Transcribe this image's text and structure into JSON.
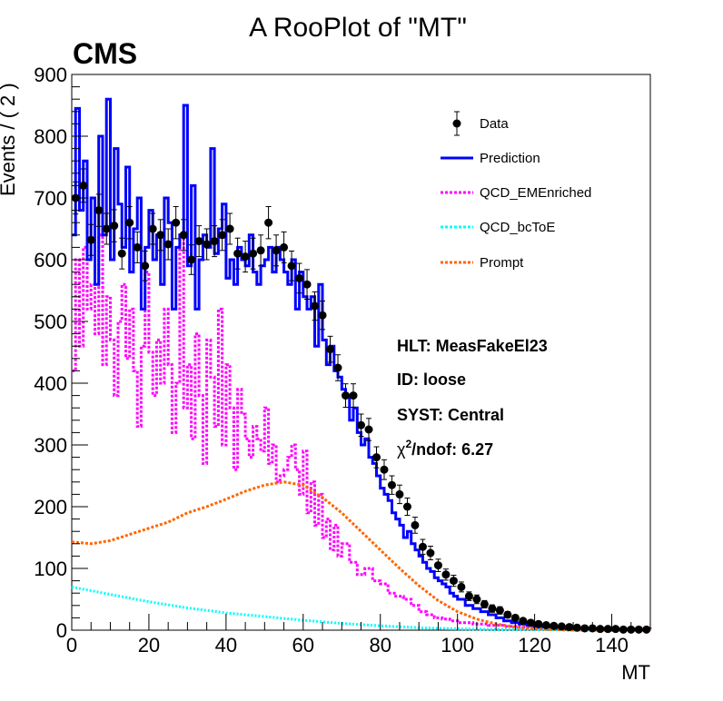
{
  "chart_data": {
    "type": "line",
    "title": "A RooPlot of \"MT\"",
    "brand": "CMS",
    "xlabel": "MT",
    "ylabel": "Events / ( 2 )",
    "xlim": [
      0,
      150
    ],
    "ylim": [
      0,
      900
    ],
    "x_ticks": [
      0,
      20,
      40,
      60,
      80,
      100,
      120,
      140
    ],
    "y_ticks": [
      0,
      100,
      200,
      300,
      400,
      500,
      600,
      700,
      800,
      900
    ],
    "grid": false,
    "legend_position": "top-right",
    "legend": [
      {
        "key": "data",
        "label": "Data",
        "style": "marker"
      },
      {
        "key": "prediction",
        "label": "Prediction",
        "style": "solid",
        "color": "#0000ff"
      },
      {
        "key": "qcd_em",
        "label": "QCD_EMEnriched",
        "style": "dotted",
        "color": "#ff00ff"
      },
      {
        "key": "qcd_bc",
        "label": "QCD_bcToE",
        "style": "dotted",
        "color": "#00ffff"
      },
      {
        "key": "prompt",
        "label": "Prompt",
        "style": "dotted",
        "color": "#ff6600"
      }
    ],
    "annotations": [
      {
        "key": "hlt",
        "text": "HLT: MeasFakeEl23"
      },
      {
        "key": "id",
        "text": "ID: loose"
      },
      {
        "key": "syst",
        "text": "SYST: Central"
      },
      {
        "key": "chi",
        "prefix": "χ",
        "sup": "2",
        "suffix": "/ndof: 6.27"
      }
    ],
    "series": {
      "data": {
        "x": [
          1,
          3,
          5,
          7,
          9,
          11,
          13,
          15,
          17,
          19,
          21,
          23,
          25,
          27,
          29,
          31,
          33,
          35,
          37,
          39,
          41,
          43,
          45,
          47,
          49,
          51,
          53,
          55,
          57,
          59,
          61,
          63,
          65,
          67,
          69,
          71,
          73,
          75,
          77,
          79,
          81,
          83,
          85,
          87,
          89,
          91,
          93,
          95,
          97,
          99,
          101,
          103,
          105,
          107,
          109,
          111,
          113,
          115,
          117,
          119,
          121,
          123,
          125,
          127,
          129,
          131,
          133,
          135,
          137,
          139,
          141,
          143,
          145,
          147,
          149
        ],
        "y": [
          700,
          720,
          632,
          680,
          650,
          655,
          610,
          660,
          620,
          590,
          650,
          640,
          625,
          660,
          640,
          600,
          630,
          625,
          630,
          640,
          650,
          610,
          605,
          610,
          615,
          660,
          615,
          620,
          590,
          570,
          560,
          525,
          510,
          455,
          425,
          380,
          380,
          332,
          325,
          280,
          260,
          235,
          220,
          200,
          170,
          135,
          125,
          105,
          90,
          80,
          70,
          55,
          50,
          42,
          35,
          32,
          25,
          20,
          15,
          12,
          10,
          8,
          7,
          6,
          5,
          4,
          3,
          3,
          2,
          2,
          2,
          1,
          1,
          1,
          1
        ],
        "err": [
          26,
          27,
          25,
          26,
          25,
          26,
          25,
          26,
          25,
          24,
          25,
          25,
          25,
          26,
          25,
          24,
          25,
          25,
          25,
          25,
          25,
          25,
          25,
          25,
          25,
          26,
          25,
          25,
          24,
          24,
          24,
          23,
          23,
          21,
          21,
          19,
          19,
          18,
          18,
          17,
          16,
          15,
          15,
          14,
          13,
          12,
          11,
          10,
          9,
          9,
          8,
          7,
          7,
          6,
          6,
          6,
          5,
          4,
          4,
          3,
          3,
          3,
          3,
          2,
          2,
          2,
          2,
          2,
          1,
          1,
          1,
          1,
          1,
          1,
          1
        ]
      },
      "prediction": {
        "x": [
          0,
          1,
          2,
          3,
          4,
          5,
          6,
          7,
          8,
          9,
          10,
          11,
          12,
          13,
          14,
          15,
          16,
          17,
          18,
          19,
          20,
          21,
          22,
          23,
          24,
          25,
          26,
          27,
          28,
          29,
          30,
          31,
          32,
          33,
          34,
          35,
          36,
          37,
          38,
          39,
          40,
          41,
          42,
          43,
          44,
          45,
          46,
          47,
          48,
          49,
          50,
          51,
          52,
          53,
          54,
          55,
          56,
          57,
          58,
          59,
          60,
          61,
          62,
          63,
          64,
          65,
          66,
          67,
          68,
          69,
          70,
          71,
          72,
          73,
          74,
          75,
          76,
          77,
          78,
          79,
          80,
          81,
          82,
          83,
          84,
          85,
          86,
          87,
          88,
          89,
          90,
          91,
          92,
          93,
          94,
          95,
          96,
          97,
          98,
          99,
          100,
          102,
          104,
          106,
          108,
          110,
          112,
          114,
          116,
          118,
          120,
          125,
          130,
          135,
          140,
          145,
          150
        ],
        "y": [
          640,
          845,
          680,
          760,
          600,
          700,
          560,
          800,
          640,
          860,
          600,
          780,
          690,
          620,
          750,
          580,
          650,
          700,
          520,
          620,
          680,
          600,
          640,
          560,
          700,
          660,
          520,
          620,
          640,
          850,
          590,
          720,
          520,
          600,
          640,
          620,
          780,
          610,
          650,
          690,
          570,
          600,
          560,
          620,
          600,
          590,
          640,
          580,
          560,
          590,
          600,
          620,
          580,
          620,
          600,
          580,
          560,
          600,
          520,
          580,
          540,
          520,
          540,
          460,
          560,
          470,
          430,
          460,
          420,
          410,
          390,
          380,
          340,
          360,
          320,
          300,
          310,
          280,
          270,
          250,
          230,
          220,
          210,
          190,
          180,
          170,
          150,
          160,
          140,
          130,
          120,
          110,
          100,
          95,
          85,
          80,
          75,
          70,
          60,
          55,
          50,
          40,
          35,
          30,
          25,
          20,
          15,
          12,
          10,
          8,
          5,
          3,
          2,
          1,
          0,
          0,
          0
        ],
        "color": "#0000ff"
      },
      "qcd_em": {
        "x": [
          0,
          1,
          2,
          3,
          4,
          5,
          6,
          7,
          8,
          9,
          10,
          11,
          12,
          13,
          14,
          15,
          16,
          17,
          18,
          19,
          20,
          21,
          22,
          23,
          24,
          25,
          26,
          27,
          28,
          29,
          30,
          31,
          32,
          33,
          34,
          35,
          36,
          37,
          38,
          39,
          40,
          41,
          42,
          43,
          44,
          45,
          46,
          47,
          48,
          49,
          50,
          51,
          52,
          53,
          54,
          55,
          56,
          57,
          58,
          59,
          60,
          61,
          62,
          63,
          64,
          65,
          66,
          67,
          68,
          69,
          70,
          72,
          74,
          76,
          78,
          80,
          82,
          84,
          86,
          88,
          90,
          92,
          94,
          96,
          98,
          100,
          104,
          108,
          112,
          116,
          120,
          130,
          140,
          150
        ],
        "y": [
          420,
          600,
          460,
          620,
          520,
          560,
          480,
          640,
          430,
          540,
          470,
          380,
          500,
          560,
          440,
          520,
          420,
          330,
          460,
          580,
          450,
          380,
          470,
          400,
          520,
          430,
          320,
          400,
          640,
          360,
          430,
          310,
          480,
          380,
          270,
          470,
          410,
          330,
          520,
          300,
          430,
          360,
          260,
          390,
          350,
          310,
          280,
          330,
          310,
          290,
          360,
          270,
          300,
          240,
          250,
          260,
          280,
          300,
          260,
          220,
          290,
          190,
          240,
          170,
          220,
          150,
          180,
          130,
          170,
          120,
          140,
          110,
          90,
          100,
          80,
          75,
          60,
          55,
          50,
          40,
          30,
          25,
          20,
          18,
          15,
          12,
          10,
          8,
          6,
          5,
          4,
          3,
          2,
          1
        ],
        "color": "#ff00ff"
      },
      "qcd_bc": {
        "x": [
          0,
          10,
          20,
          30,
          40,
          50,
          60,
          70,
          80,
          90,
          100,
          110,
          120,
          130,
          140,
          150
        ],
        "y": [
          70,
          58,
          46,
          36,
          28,
          22,
          16,
          11,
          7,
          4,
          2,
          1,
          1,
          0,
          0,
          0
        ],
        "color": "#00ffff"
      },
      "prompt": {
        "x": [
          0,
          5,
          10,
          15,
          20,
          25,
          30,
          35,
          40,
          45,
          50,
          55,
          60,
          65,
          70,
          75,
          80,
          85,
          90,
          95,
          100,
          105,
          110,
          115,
          120,
          125,
          130,
          135,
          140,
          145,
          150
        ],
        "y": [
          143,
          140,
          145,
          155,
          165,
          175,
          190,
          200,
          212,
          225,
          235,
          240,
          235,
          215,
          190,
          160,
          130,
          100,
          72,
          48,
          30,
          18,
          10,
          5,
          2,
          1,
          0,
          0,
          0,
          0,
          0
        ],
        "color": "#ff6600"
      }
    }
  }
}
